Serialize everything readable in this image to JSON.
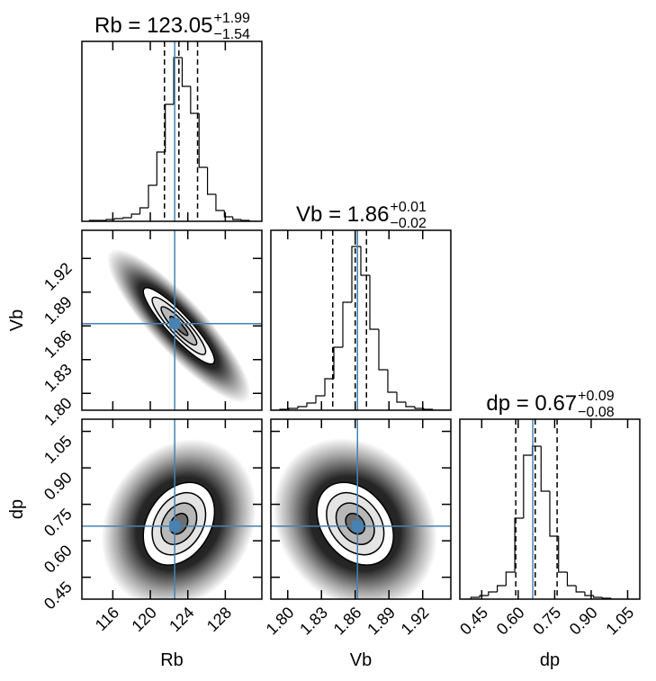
{
  "chart_data": {
    "type": "corner",
    "params": [
      {
        "name": "Rb",
        "title": "Rb = 123.05",
        "title_upper": "+1.99",
        "title_lower": "−1.54",
        "quantiles": [
          121.51,
          123.05,
          125.04
        ],
        "truth": 122.6,
        "lim": [
          112.7,
          131.9
        ],
        "ticks": [
          116,
          120,
          124,
          128
        ],
        "bins": [
          113.5,
          114.4,
          115.3,
          116.2,
          117.1,
          118,
          118.9,
          119.8,
          120.7,
          121.6,
          122.5,
          123.4,
          124.3,
          125.2,
          126.1,
          127,
          127.9,
          128.8,
          129.7,
          130.6,
          131.5
        ],
        "counts": [
          1,
          1,
          2,
          3,
          4,
          8,
          15,
          40,
          77,
          130,
          182,
          150,
          120,
          60,
          30,
          12,
          5,
          2,
          1,
          0
        ]
      },
      {
        "name": "Vb",
        "title": "Vb = 1.86",
        "title_upper": "+0.01",
        "title_lower": "−0.02",
        "quantiles": [
          1.84,
          1.86,
          1.87
        ],
        "truth": 1.862,
        "lim": [
          1.785,
          1.945
        ],
        "ticks": [
          {
            "value": 1.8,
            "label": "1.80"
          },
          1.83,
          {
            "value": 1.86,
            "label": "1.86"
          },
          1.89,
          1.92
        ],
        "bins": [
          1.785,
          1.793,
          1.801,
          1.809,
          1.817,
          1.825,
          1.833,
          1.841,
          1.849,
          1.857,
          1.865,
          1.873,
          1.881,
          1.889,
          1.897,
          1.905,
          1.913,
          1.921,
          1.929,
          1.937,
          1.945
        ],
        "counts": [
          0,
          1,
          2,
          4,
          8,
          16,
          35,
          70,
          120,
          182,
          150,
          90,
          45,
          20,
          9,
          4,
          2,
          1,
          0,
          0
        ]
      },
      {
        "name": "dp",
        "title": "dp = 0.67",
        "title_upper": "+0.09",
        "title_lower": "−0.08",
        "quantiles": [
          0.59,
          0.67,
          0.76
        ],
        "truth": 0.66,
        "lim": [
          0.36,
          1.1
        ],
        "ticks": [
          0.45,
          {
            "value": 0.6,
            "label": "0.60"
          },
          0.75,
          {
            "value": 0.9,
            "label": "0.90"
          },
          1.05
        ],
        "bins": [
          0.37,
          0.406,
          0.442,
          0.478,
          0.514,
          0.55,
          0.586,
          0.622,
          0.658,
          0.694,
          0.73,
          0.766,
          0.802,
          0.838,
          0.874,
          0.91,
          0.946,
          0.982,
          1.018,
          1.054,
          1.09
        ],
        "counts": [
          0,
          2,
          4,
          8,
          15,
          30,
          90,
          160,
          170,
          120,
          70,
          30,
          15,
          8,
          4,
          2,
          1,
          0,
          0,
          0
        ]
      }
    ],
    "hist_ylim": [
      0,
      200
    ],
    "pairs": [
      {
        "mean": [
          123.05,
          1.86
        ],
        "std": [
          1.9,
          0.017
        ],
        "corr": -0.9
      },
      {
        "mean": [
          123.05,
          0.67
        ],
        "std": [
          1.9,
          0.085
        ],
        "corr": 0.3
      },
      {
        "mean": [
          1.86,
          0.67
        ],
        "std": [
          0.017,
          0.085
        ],
        "corr": -0.3
      }
    ],
    "contour_sigmas": [
      0.5,
      1,
      1.5,
      2
    ],
    "truth_color": "#4682b4",
    "line_color": "#000000"
  }
}
